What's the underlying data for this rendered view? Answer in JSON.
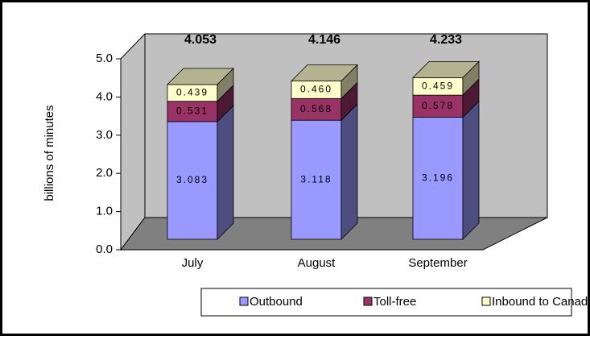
{
  "chart_data": {
    "type": "bar3d_stacked",
    "y_label": "billions of minutes",
    "categories": [
      "July",
      "August",
      "September"
    ],
    "series": [
      {
        "name": "Outbound",
        "color": "#9999ff",
        "side_color": "#4d4d80",
        "values": [
          3.083,
          3.118,
          3.196
        ]
      },
      {
        "name": "Toll-free",
        "color": "#993366",
        "side_color": "#4d1a33",
        "values": [
          0.531,
          0.568,
          0.578
        ]
      },
      {
        "name": "Inbound to Canada",
        "color": "#ffffcc",
        "side_color": "#808066",
        "values": [
          0.439,
          0.46,
          0.459
        ]
      }
    ],
    "value_labels": [
      [
        "3.083",
        "3.118",
        "3.196"
      ],
      [
        "0.531",
        "0.568",
        "0.578"
      ],
      [
        "0.439",
        "0.460",
        "0.459"
      ]
    ],
    "totals": [
      4.053,
      4.146,
      4.233
    ],
    "ylim": [
      0,
      5
    ],
    "yticks": [
      {
        "value": 0,
        "label": "0.0"
      },
      {
        "value": 1,
        "label": "1.0"
      },
      {
        "value": 2,
        "label": "2.0"
      },
      {
        "value": 3,
        "label": "3.0"
      },
      {
        "value": 4,
        "label": "4.0"
      },
      {
        "value": 5,
        "label": "5.0"
      }
    ],
    "legend": "bottom"
  }
}
